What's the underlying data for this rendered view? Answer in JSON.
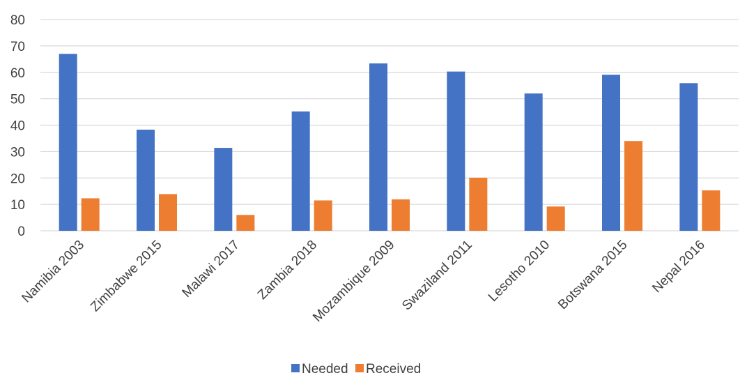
{
  "chart_data": {
    "type": "bar",
    "title": "",
    "xlabel": "",
    "ylabel": "",
    "categories": [
      "Namibia 2003",
      "Zimbabwe 2015",
      "Malawi 2017",
      "Zambia 2018",
      "Mozambique 2009",
      "Swaziland 2011",
      "Lesotho 2010",
      "Botswana 2015",
      "Nepal 2016"
    ],
    "series": [
      {
        "name": "Needed",
        "color": "#4472c4",
        "values": [
          67.0,
          38.3,
          31.4,
          45.2,
          63.4,
          60.3,
          52.0,
          59.1,
          55.9
        ]
      },
      {
        "name": "Received",
        "color": "#ed7d31",
        "values": [
          12.3,
          13.9,
          6.0,
          11.5,
          11.9,
          20.1,
          9.2,
          34.0,
          15.3
        ]
      }
    ],
    "ylim": [
      0,
      80
    ],
    "yticks": [
      0,
      10,
      20,
      30,
      40,
      50,
      60,
      70,
      80
    ],
    "grid": true,
    "legend_position": "bottom"
  }
}
